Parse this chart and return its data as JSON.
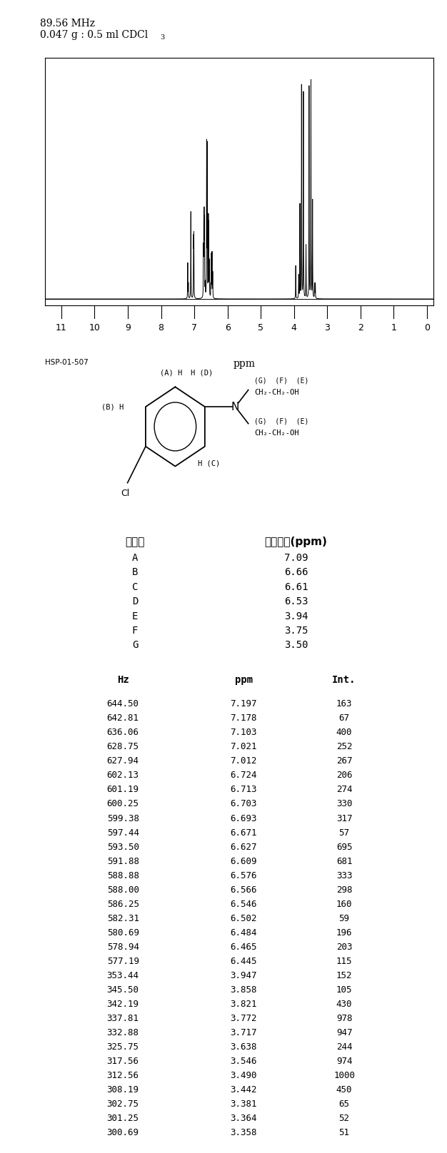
{
  "freq_mhz": "89.56 MHz",
  "ref_code": "HSP-01-507",
  "x_label": "ppm",
  "x_ticks": [
    0,
    1,
    2,
    3,
    4,
    5,
    6,
    7,
    8,
    9,
    10,
    11
  ],
  "peaks": [
    {
      "ppm": 7.197,
      "intensity": 163
    },
    {
      "ppm": 7.178,
      "intensity": 67
    },
    {
      "ppm": 7.103,
      "intensity": 400
    },
    {
      "ppm": 7.021,
      "intensity": 252
    },
    {
      "ppm": 7.012,
      "intensity": 267
    },
    {
      "ppm": 6.724,
      "intensity": 206
    },
    {
      "ppm": 6.713,
      "intensity": 274
    },
    {
      "ppm": 6.703,
      "intensity": 330
    },
    {
      "ppm": 6.693,
      "intensity": 317
    },
    {
      "ppm": 6.671,
      "intensity": 57
    },
    {
      "ppm": 6.627,
      "intensity": 695
    },
    {
      "ppm": 6.609,
      "intensity": 681
    },
    {
      "ppm": 6.576,
      "intensity": 333
    },
    {
      "ppm": 6.566,
      "intensity": 298
    },
    {
      "ppm": 6.546,
      "intensity": 160
    },
    {
      "ppm": 6.502,
      "intensity": 59
    },
    {
      "ppm": 6.484,
      "intensity": 196
    },
    {
      "ppm": 6.465,
      "intensity": 203
    },
    {
      "ppm": 6.445,
      "intensity": 115
    },
    {
      "ppm": 3.947,
      "intensity": 152
    },
    {
      "ppm": 3.858,
      "intensity": 105
    },
    {
      "ppm": 3.821,
      "intensity": 430
    },
    {
      "ppm": 3.772,
      "intensity": 978
    },
    {
      "ppm": 3.717,
      "intensity": 947
    },
    {
      "ppm": 3.638,
      "intensity": 244
    },
    {
      "ppm": 3.546,
      "intensity": 974
    },
    {
      "ppm": 3.49,
      "intensity": 1000
    },
    {
      "ppm": 3.442,
      "intensity": 450
    },
    {
      "ppm": 3.381,
      "intensity": 65
    },
    {
      "ppm": 3.364,
      "intensity": 52
    },
    {
      "ppm": 3.358,
      "intensity": 51
    }
  ],
  "assignments": [
    {
      "label": "A",
      "ppm": "7.09"
    },
    {
      "label": "B",
      "ppm": "6.66"
    },
    {
      "label": "C",
      "ppm": "6.61"
    },
    {
      "label": "D",
      "ppm": "6.53"
    },
    {
      "label": "E",
      "ppm": "3.94"
    },
    {
      "label": "F",
      "ppm": "3.75"
    },
    {
      "label": "G",
      "ppm": "3.50"
    }
  ],
  "table_data": [
    {
      "hz": "644.50",
      "ppm": "7.197",
      "int": "163"
    },
    {
      "hz": "642.81",
      "ppm": "7.178",
      "int": "67"
    },
    {
      "hz": "636.06",
      "ppm": "7.103",
      "int": "400"
    },
    {
      "hz": "628.75",
      "ppm": "7.021",
      "int": "252"
    },
    {
      "hz": "627.94",
      "ppm": "7.012",
      "int": "267"
    },
    {
      "hz": "602.13",
      "ppm": "6.724",
      "int": "206"
    },
    {
      "hz": "601.19",
      "ppm": "6.713",
      "int": "274"
    },
    {
      "hz": "600.25",
      "ppm": "6.703",
      "int": "330"
    },
    {
      "hz": "599.38",
      "ppm": "6.693",
      "int": "317"
    },
    {
      "hz": "597.44",
      "ppm": "6.671",
      "int": "57"
    },
    {
      "hz": "593.50",
      "ppm": "6.627",
      "int": "695"
    },
    {
      "hz": "591.88",
      "ppm": "6.609",
      "int": "681"
    },
    {
      "hz": "588.88",
      "ppm": "6.576",
      "int": "333"
    },
    {
      "hz": "588.00",
      "ppm": "6.566",
      "int": "298"
    },
    {
      "hz": "586.25",
      "ppm": "6.546",
      "int": "160"
    },
    {
      "hz": "582.31",
      "ppm": "6.502",
      "int": "59"
    },
    {
      "hz": "580.69",
      "ppm": "6.484",
      "int": "196"
    },
    {
      "hz": "578.94",
      "ppm": "6.465",
      "int": "203"
    },
    {
      "hz": "577.19",
      "ppm": "6.445",
      "int": "115"
    },
    {
      "hz": "353.44",
      "ppm": "3.947",
      "int": "152"
    },
    {
      "hz": "345.50",
      "ppm": "3.858",
      "int": "105"
    },
    {
      "hz": "342.19",
      "ppm": "3.821",
      "int": "430"
    },
    {
      "hz": "337.81",
      "ppm": "3.772",
      "int": "978"
    },
    {
      "hz": "332.88",
      "ppm": "3.717",
      "int": "947"
    },
    {
      "hz": "325.75",
      "ppm": "3.638",
      "int": "244"
    },
    {
      "hz": "317.56",
      "ppm": "3.546",
      "int": "974"
    },
    {
      "hz": "312.56",
      "ppm": "3.490",
      "int": "1000"
    },
    {
      "hz": "308.19",
      "ppm": "3.442",
      "int": "450"
    },
    {
      "hz": "302.75",
      "ppm": "3.381",
      "int": "65"
    },
    {
      "hz": "301.25",
      "ppm": "3.364",
      "int": "52"
    },
    {
      "hz": "300.69",
      "ppm": "3.358",
      "int": "51"
    }
  ]
}
